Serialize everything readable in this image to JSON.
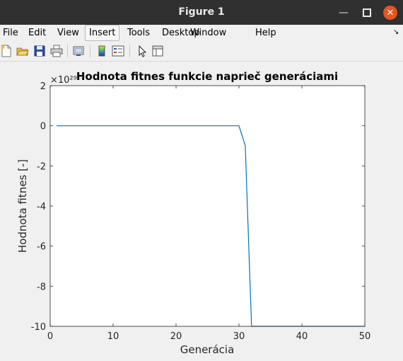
{
  "window": {
    "title": "Figure 1"
  },
  "menu": {
    "items": [
      "File",
      "Edit",
      "View",
      "Insert",
      "Tools",
      "Desktop",
      "Window",
      "Help"
    ],
    "active": "Insert"
  },
  "toolbar": {
    "icons": [
      "new-figure-icon",
      "open-file-icon",
      "save-icon",
      "print-icon",
      "link-plot-icon",
      "colorbar-icon",
      "legend-icon",
      "pointer-icon",
      "property-editor-icon"
    ]
  },
  "chart_data": {
    "type": "line",
    "title": "Hodnota fitnes funkcie naprieč generáciami",
    "xlabel": "Generácia",
    "ylabel": "Hodnota fitnes [-]",
    "exponent_label": "×10²⁹",
    "xlim": [
      0,
      50
    ],
    "ylim": [
      -10,
      2
    ],
    "xticks": [
      0,
      10,
      20,
      30,
      40,
      50
    ],
    "yticks": [
      2,
      0,
      -2,
      -4,
      -6,
      -8,
      -10
    ],
    "color": "#0072bd",
    "grid": false,
    "x": [
      1,
      30,
      31,
      32,
      50
    ],
    "y": [
      0,
      0,
      -1,
      -10,
      -10
    ]
  }
}
